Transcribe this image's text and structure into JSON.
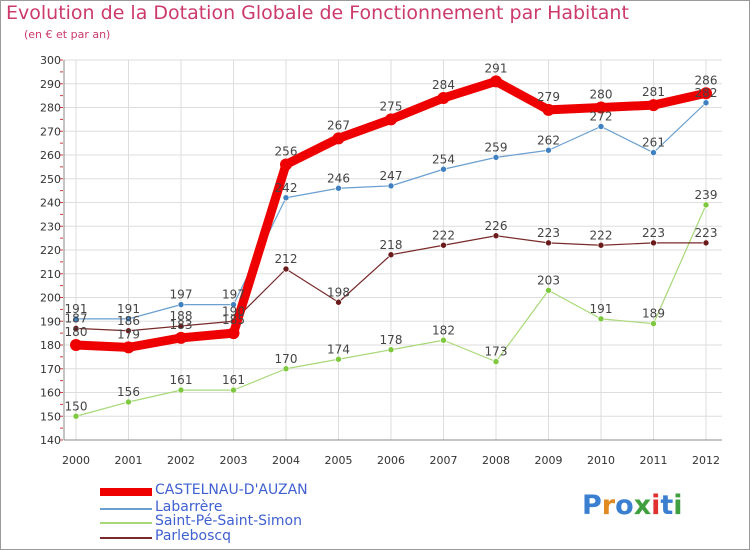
{
  "chart_data": {
    "type": "line",
    "title": "Evolution de la Dotation Globale de Fonctionnement par Habitant",
    "subtitle": "(en € et par an)",
    "xlabel": "",
    "ylabel": "",
    "ylim": [
      140,
      300
    ],
    "yticks": [
      140,
      150,
      160,
      170,
      180,
      190,
      200,
      210,
      220,
      230,
      240,
      250,
      260,
      270,
      280,
      290,
      300
    ],
    "categories": [
      "2000",
      "2001",
      "2002",
      "2003",
      "2004",
      "2005",
      "2006",
      "2007",
      "2008",
      "2009",
      "2010",
      "2011",
      "2012"
    ],
    "grid": true,
    "legend": "bottom-left",
    "series": [
      {
        "name": "Labarrère",
        "color": "#6a9fd0",
        "marker": "#3f80c0",
        "values": [
          191,
          191,
          197,
          197,
          242,
          246,
          247,
          254,
          259,
          262,
          272,
          261,
          282
        ]
      },
      {
        "name": "Saint-Pé-Saint-Simon",
        "color": "#a8d878",
        "marker": "#7ec840",
        "values": [
          150,
          156,
          161,
          161,
          170,
          174,
          178,
          182,
          173,
          203,
          191,
          189,
          239
        ]
      },
      {
        "name": "Parleboscq",
        "color": "#7a2a2a",
        "marker": "#6a1a1a",
        "values": [
          187,
          186,
          188,
          190,
          212,
          198,
          218,
          222,
          226,
          223,
          222,
          223,
          223
        ]
      },
      {
        "name": "CASTELNAU-D'AUZAN",
        "color": "#ee0000",
        "marker": "#ee0000",
        "values": [
          180,
          179,
          183,
          185,
          256,
          267,
          275,
          284,
          291,
          279,
          280,
          281,
          286
        ]
      }
    ],
    "legend_order": [
      "CASTELNAU-D'AUZAN",
      "Labarrère",
      "Saint-Pé-Saint-Simon",
      "Parleboscq"
    ]
  },
  "logo": {
    "text": "Proxiti",
    "letters": [
      "P",
      "r",
      "o",
      "x",
      "i",
      "t",
      "i"
    ],
    "colors": [
      "#3a7fd0",
      "#e08a20",
      "#3a7fd0",
      "#40a040",
      "#e03030",
      "#3a7fd0",
      "#40a040"
    ]
  }
}
